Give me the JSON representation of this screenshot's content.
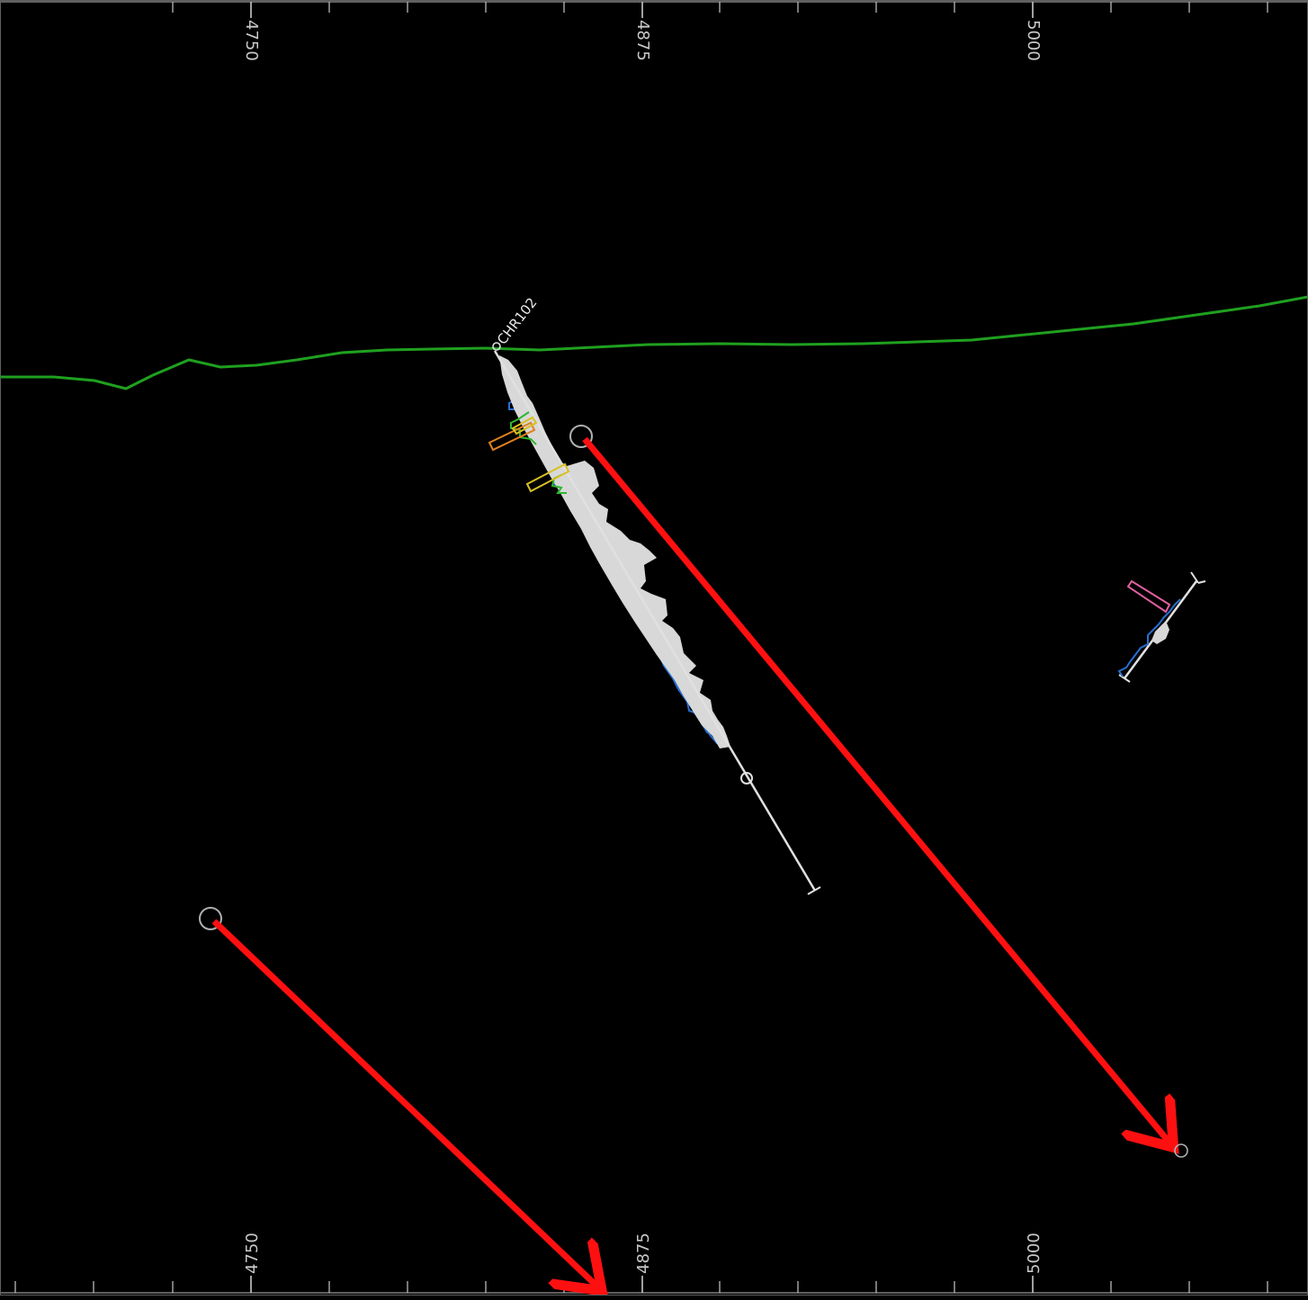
{
  "section": {
    "background": "#000000",
    "axis_color": "#C8C8C8",
    "ticks": {
      "top": [
        "4750",
        "4875",
        "5000"
      ],
      "bottom": [
        "4750",
        "4875",
        "5000"
      ]
    },
    "hole_label": "CHR102",
    "colors": {
      "topography": "#1FA01F",
      "hole_trace": "#E0E0E0",
      "histogram_fill": "#D8D8D8",
      "histogram_blue": "#2A6FD0",
      "histogram_green": "#2DB82D",
      "interval_orange": "#E08020",
      "interval_yellow": "#D8C020",
      "interval_pink": "#E060A0",
      "arrow": "#FF1010",
      "circle": "#B0B0B0"
    },
    "arrows_count": 2
  }
}
